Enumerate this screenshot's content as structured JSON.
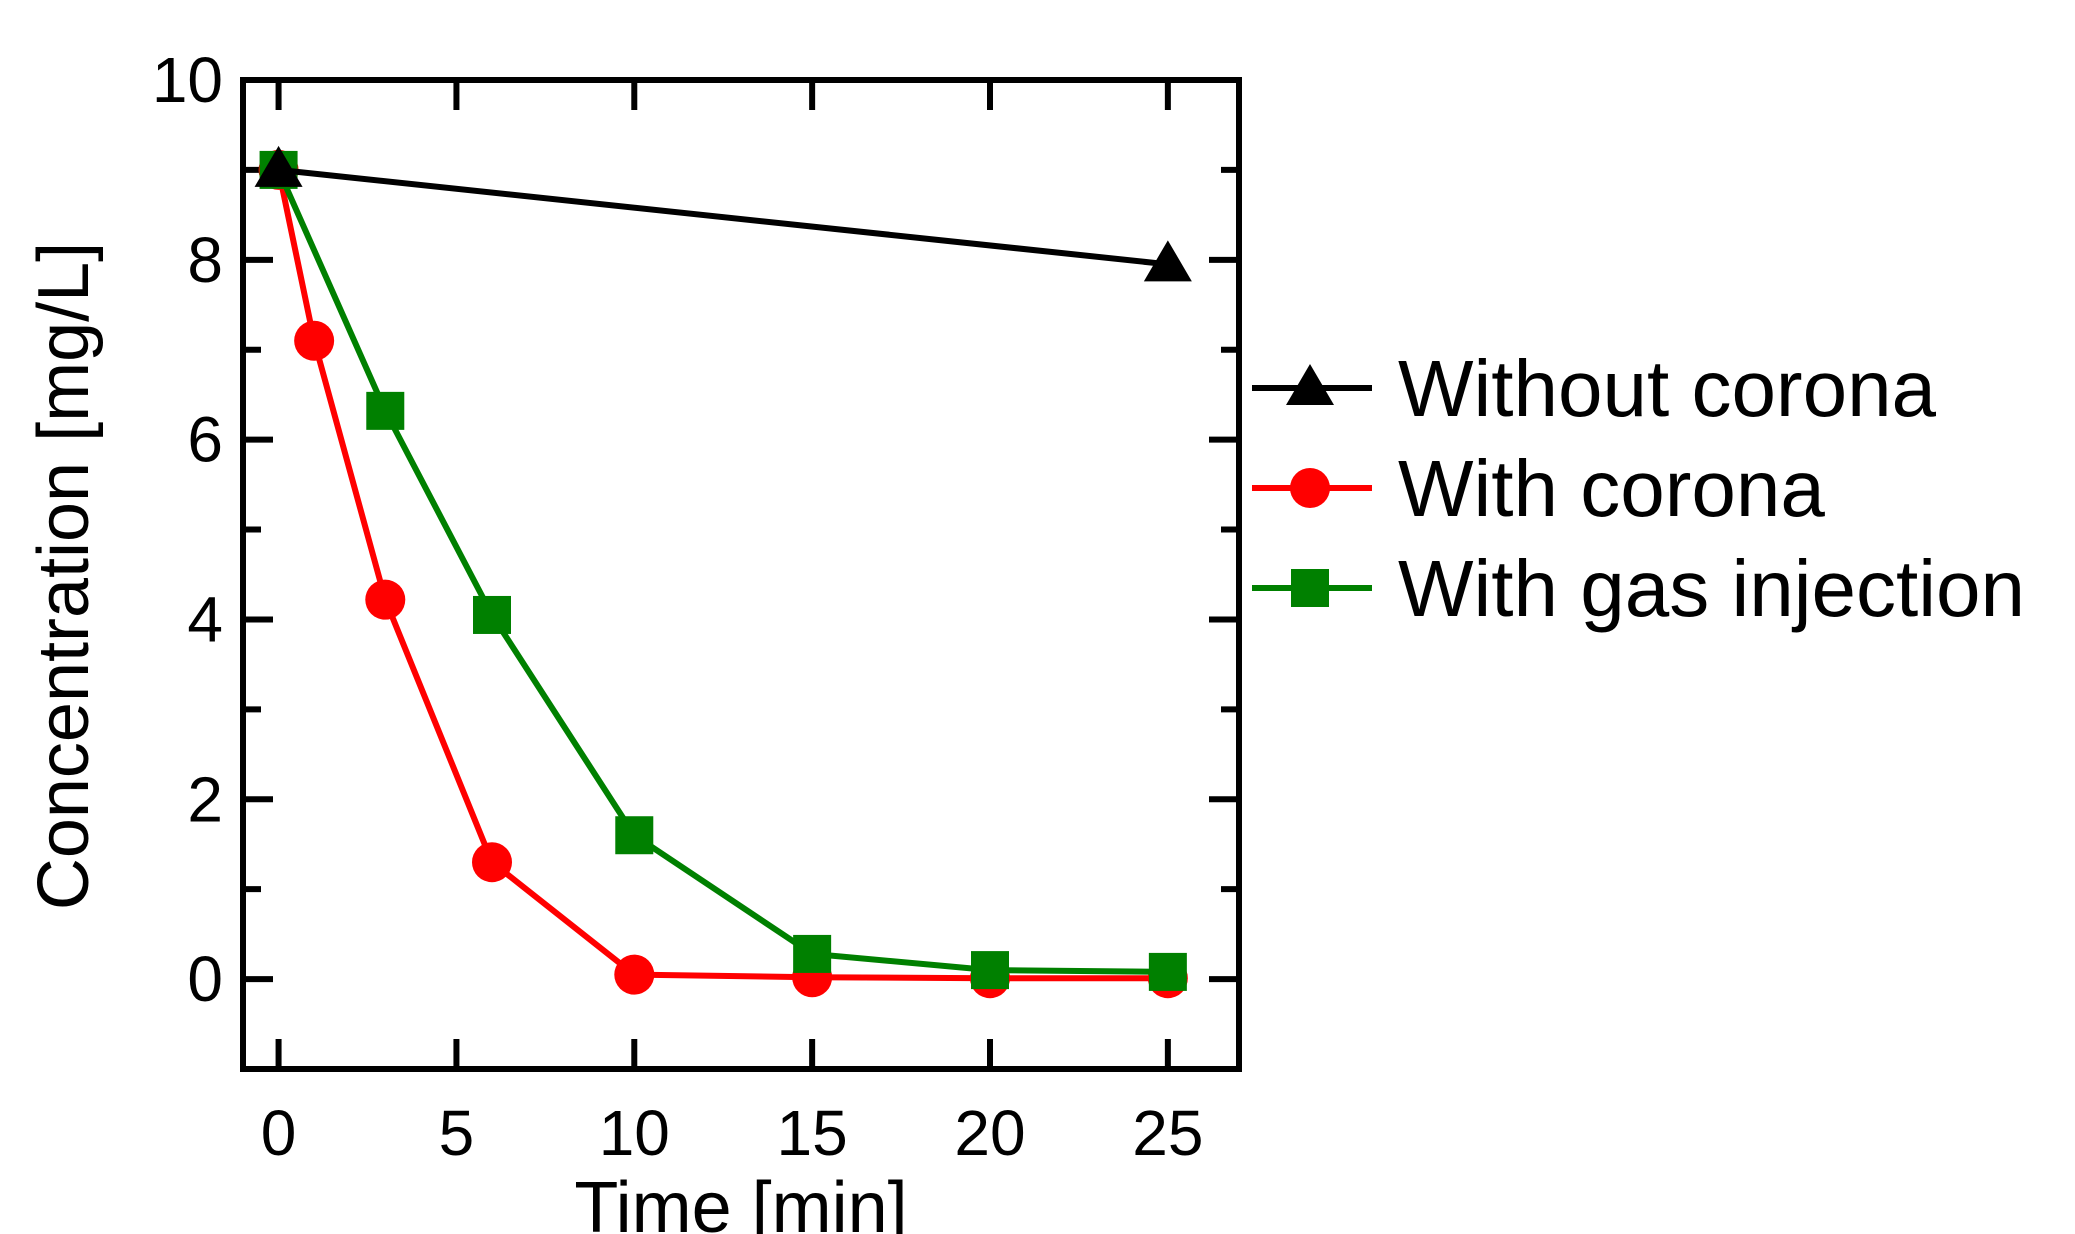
{
  "chart_data": {
    "type": "line",
    "title": "",
    "xlabel": "Time [min]",
    "ylabel": "Concentration [mg/L]",
    "xlim": [
      -1,
      27
    ],
    "ylim": [
      -1,
      10
    ],
    "xticks": [
      0,
      5,
      10,
      15,
      20,
      25
    ],
    "yticks": [
      0,
      2,
      4,
      6,
      8,
      10
    ],
    "grid": false,
    "legend_position": "right",
    "series": [
      {
        "name": "Without corona",
        "color": "#000000",
        "marker": "triangle",
        "x": [
          0,
          25
        ],
        "y": [
          9.0,
          7.95
        ]
      },
      {
        "name": "With corona",
        "color": "#ff0000",
        "marker": "circle",
        "x": [
          0,
          1,
          3,
          6,
          10,
          15,
          20,
          25
        ],
        "y": [
          9.0,
          7.1,
          4.22,
          1.3,
          0.05,
          0.02,
          0.01,
          0.01
        ]
      },
      {
        "name": "With gas injection",
        "color": "#008000",
        "marker": "square",
        "x": [
          0,
          3,
          6,
          10,
          15,
          20,
          25
        ],
        "y": [
          9.0,
          6.32,
          4.05,
          1.6,
          0.28,
          0.1,
          0.08
        ]
      }
    ]
  }
}
